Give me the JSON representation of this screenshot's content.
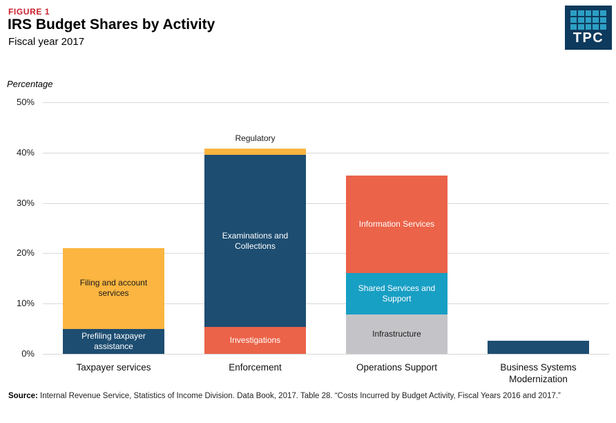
{
  "header": {
    "figure_label": "FIGURE 1",
    "title": "IRS Budget Shares by Activity",
    "subtitle": "Fiscal year 2017"
  },
  "logo": {
    "text": "TPC"
  },
  "chart_data": {
    "type": "bar",
    "stacked": true,
    "title": "IRS Budget Shares by Activity",
    "subtitle": "Fiscal year 2017",
    "ylabel": "Percentage",
    "ylim": [
      0,
      50
    ],
    "yticks": [
      "0%",
      "10%",
      "20%",
      "30%",
      "40%",
      "50%"
    ],
    "grid": "horizontal",
    "categories": [
      "Taxpayer services",
      "Enforcement",
      "Operations Support",
      "Business Systems Modernization"
    ],
    "colors": {
      "navy": "#1d4d71",
      "yellow": "#fbb540",
      "red": "#eb6349",
      "teal": "#189fc4",
      "gray": "#c4c4c8"
    },
    "bars": [
      {
        "category": "Taxpayer services",
        "total": 21.0,
        "segments": [
          {
            "label": "Prefiling taxpayer assistance",
            "value": 5.0,
            "color": "navy",
            "text": "light"
          },
          {
            "label": "Filing and account services",
            "value": 16.0,
            "color": "yellow",
            "text": "dark"
          }
        ]
      },
      {
        "category": "Enforcement",
        "total": 40.8,
        "segments": [
          {
            "label": "Investigations",
            "value": 5.3,
            "color": "red",
            "text": "light"
          },
          {
            "label": "Examinations and Collections",
            "value": 34.2,
            "color": "navy",
            "text": "light"
          },
          {
            "label": "Regulatory",
            "value": 1.3,
            "color": "yellow",
            "text": "dark",
            "label_position": "above"
          }
        ]
      },
      {
        "category": "Operations Support",
        "total": 35.5,
        "segments": [
          {
            "label": "Infrastructure",
            "value": 7.8,
            "color": "gray",
            "text": "dark"
          },
          {
            "label": "Shared Services and Support",
            "value": 8.3,
            "color": "teal",
            "text": "light"
          },
          {
            "label": "Information Services",
            "value": 19.4,
            "color": "red",
            "text": "light"
          }
        ]
      },
      {
        "category": "Business Systems Modernization",
        "total": 2.6,
        "segments": [
          {
            "label": "",
            "value": 2.6,
            "color": "navy",
            "text": "light"
          }
        ]
      }
    ]
  },
  "source": {
    "label": "Source:",
    "text": " Internal Revenue Service, Statistics of Income Division. Data Book, 2017. Table 28. “Costs Incurred by Budget Activity, Fiscal Years 2016 and 2017.”"
  }
}
